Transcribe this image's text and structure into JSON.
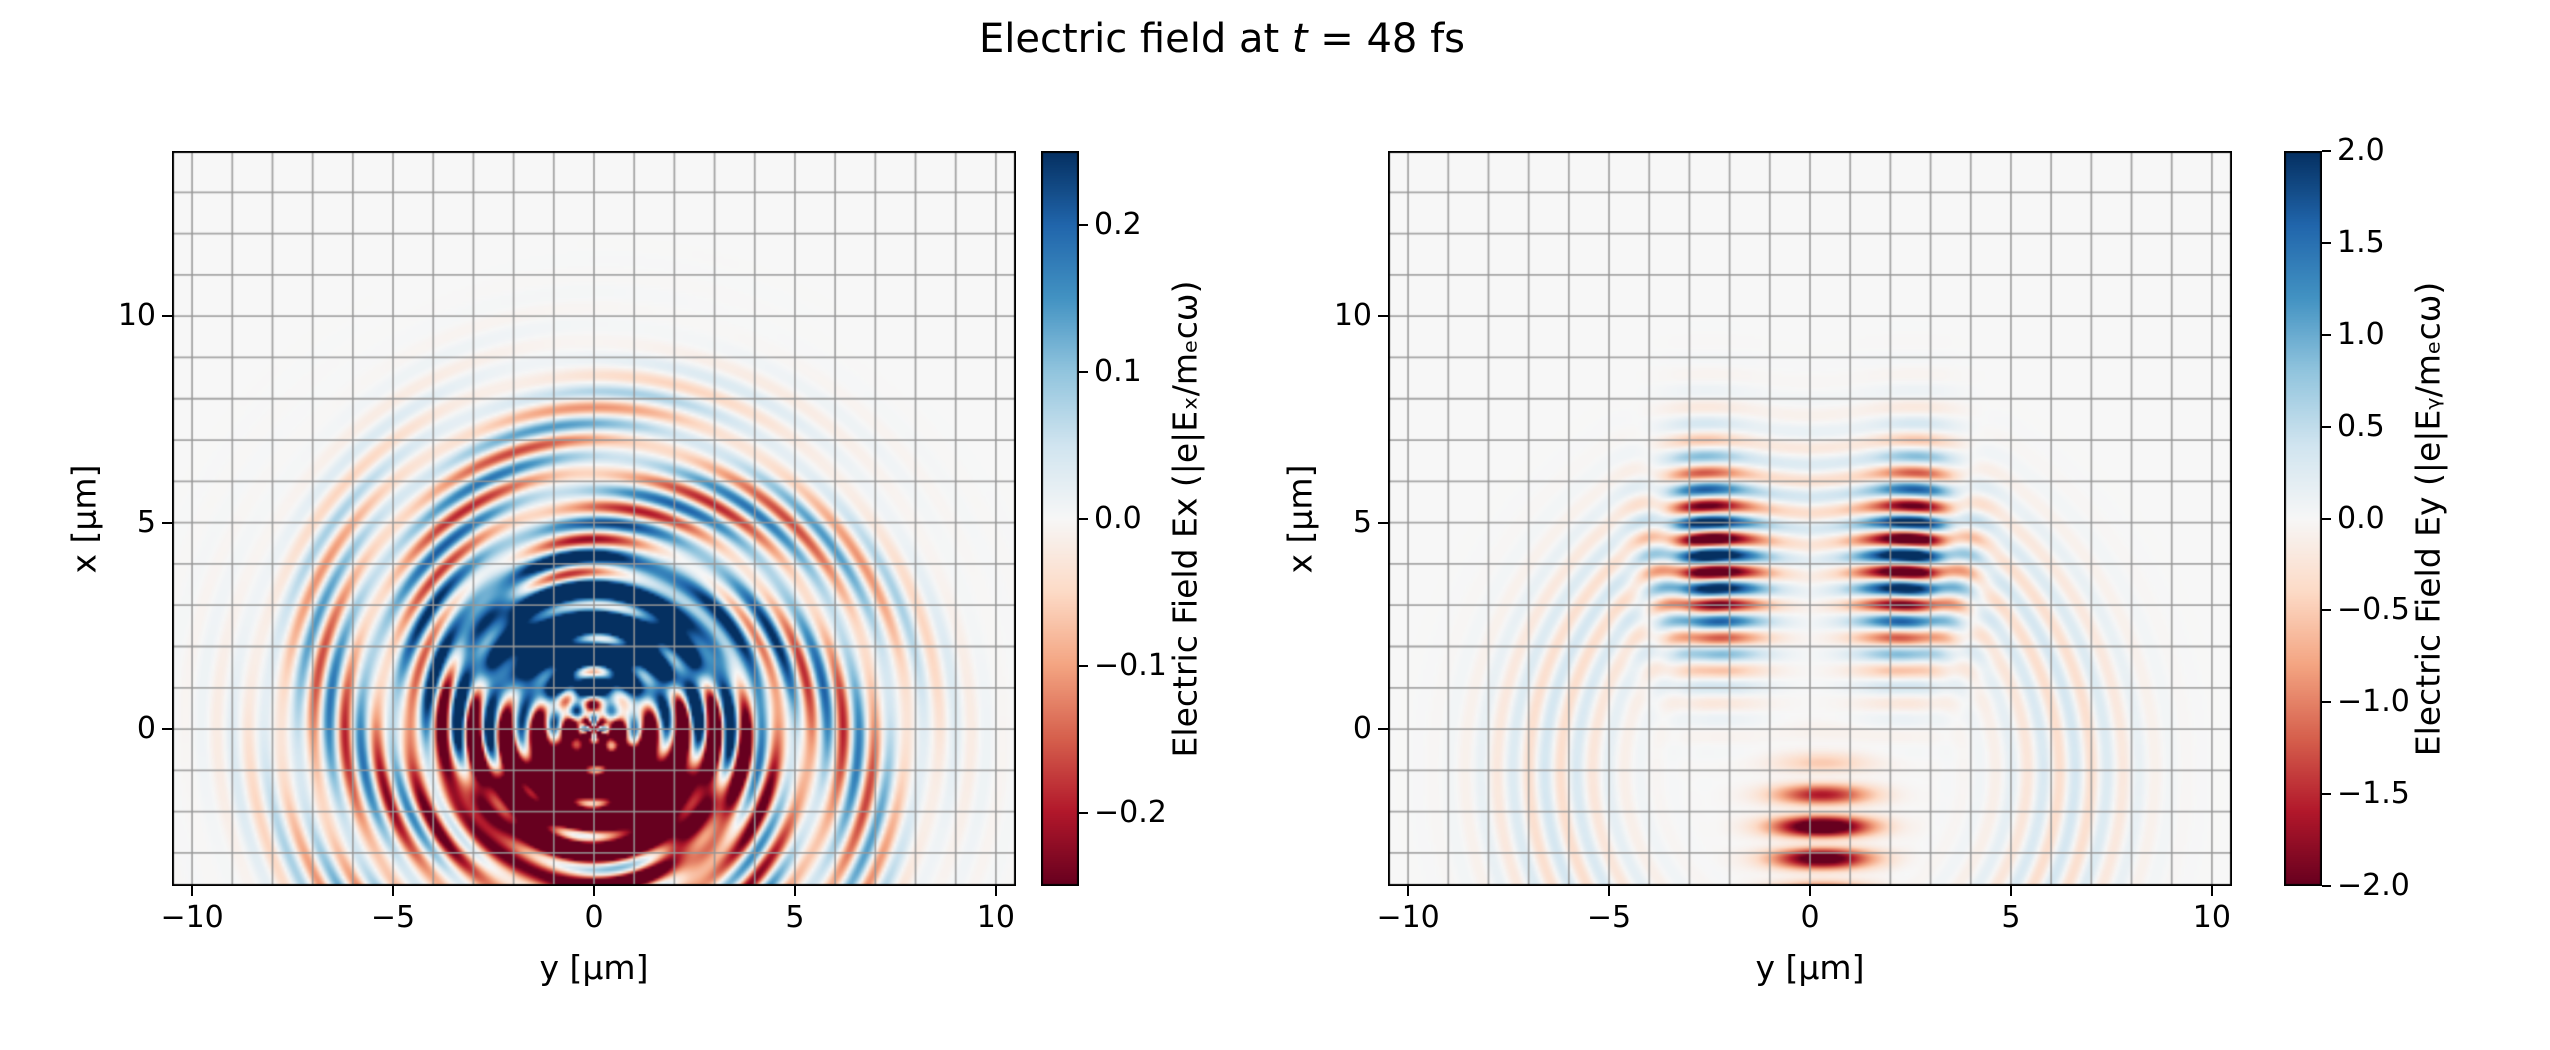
{
  "figure": {
    "title": {
      "full": "Electric field at t = 48 fs",
      "prefix": "Electric field at ",
      "variable": "t",
      "suffix": " = 48 fs"
    },
    "background": "#ffffff",
    "grid_color": "#969696",
    "spine_color": "#000000"
  },
  "chart_data": [
    {
      "type": "heatmap",
      "name": "Ex",
      "xlabel": "y [μm]",
      "ylabel": "x [μm]",
      "xlim": [
        -10.5,
        10.5
      ],
      "ylim": [
        -3.8,
        14.0
      ],
      "x_ticks": [
        {
          "v": -10,
          "label": "−10"
        },
        {
          "v": -5,
          "label": "−5"
        },
        {
          "v": 0,
          "label": "0"
        },
        {
          "v": 5,
          "label": "5"
        },
        {
          "v": 10,
          "label": "10"
        }
      ],
      "y_ticks": [
        {
          "v": 0,
          "label": "0"
        },
        {
          "v": 5,
          "label": "5"
        },
        {
          "v": 10,
          "label": "10"
        }
      ],
      "grid": true,
      "grid_step_um": 1,
      "colormap": "RdBu",
      "colorbar": {
        "label": "Electric Field Ex (|e|Eₓ/mₑcω)",
        "vmin": -0.25,
        "vmax": 0.25,
        "ticks": [
          {
            "v": 0.2,
            "label": "0.2"
          },
          {
            "v": 0.1,
            "label": "0.1"
          },
          {
            "v": 0.0,
            "label": "0.0"
          },
          {
            "v": -0.1,
            "label": "−0.1"
          },
          {
            "v": -0.2,
            "label": "−0.2"
          }
        ]
      },
      "description": "Concentric radial wave rings of alternating sign centered at (y=0, x=0), radius up to ~8.5 μm, saturated blue lobe above center and saturated red lobe below center, mottled interference in the core.",
      "synthesis": {
        "pattern": "radial_rings",
        "wavelength_um": 0.8,
        "source": [
          0,
          0
        ],
        "ring_amp": 0.16,
        "ring_peak_r": 3.5,
        "ring_sigma": 3.5,
        "outer_amp": 0.05,
        "outer_peak_r": 7.0,
        "outer_sigma": 1.5,
        "angular_mod": 0.55,
        "angular_freq": 6,
        "core_amp": 0.3,
        "core_radius": 4.0,
        "bias_amp": 0.5,
        "bias_h_sigma": 3.0,
        "bias_top": [
          2.0,
          1.6
        ],
        "bias_bottom": [
          -1.5,
          1.9
        ]
      }
    },
    {
      "type": "heatmap",
      "name": "Ey",
      "xlabel": "y [μm]",
      "ylabel": "x [μm]",
      "xlim": [
        -10.5,
        10.5
      ],
      "ylim": [
        -3.8,
        14.0
      ],
      "x_ticks": [
        {
          "v": -10,
          "label": "−10"
        },
        {
          "v": -5,
          "label": "−5"
        },
        {
          "v": 0,
          "label": "0"
        },
        {
          "v": 5,
          "label": "5"
        },
        {
          "v": 10,
          "label": "10"
        }
      ],
      "y_ticks": [
        {
          "v": 0,
          "label": "0"
        },
        {
          "v": 5,
          "label": "5"
        },
        {
          "v": 10,
          "label": "10"
        }
      ],
      "grid": true,
      "grid_step_um": 1,
      "colormap": "RdBu",
      "colorbar": {
        "label": "Electric Field Ey (|e|Eᵧ/mₑcω)",
        "vmin": -2.0,
        "vmax": 2.0,
        "ticks": [
          {
            "v": 2.0,
            "label": "2.0"
          },
          {
            "v": 1.5,
            "label": "1.5"
          },
          {
            "v": 1.0,
            "label": "1.0"
          },
          {
            "v": 0.5,
            "label": "0.5"
          },
          {
            "v": 0.0,
            "label": "0.0"
          },
          {
            "v": -0.5,
            "label": "−0.5"
          },
          {
            "v": -1.0,
            "label": "−1.0"
          },
          {
            "v": -1.5,
            "label": "−1.5"
          },
          {
            "v": -2.0,
            "label": "−2.0"
          }
        ]
      },
      "description": "Two lobes of horizontal alternating stripes (laser pulse) at y ≈ ±2.3 μm spanning x ≈ 1–7 μm, a saturated red striped blob near bottom center (x ≈ −4..−1), and faint concentric rings.",
      "synthesis": {
        "pattern": "stripes_two_lobes",
        "wavelength_um": 0.8,
        "lobe_centers_h": [
          -2.3,
          2.3
        ],
        "lobe_sigma_h": 1.25,
        "stripe_amp": 2.6,
        "stripe_v_center": 4.2,
        "stripe_v_sigma": 2.3,
        "blob_amp": -2.8,
        "blob_center": [
          0.3,
          -2.6
        ],
        "blob_sigma": [
          1.2,
          1.4
        ],
        "ring_amp": 0.35,
        "ring_r": 6.5,
        "ring_sigma": 1.8
      }
    }
  ]
}
